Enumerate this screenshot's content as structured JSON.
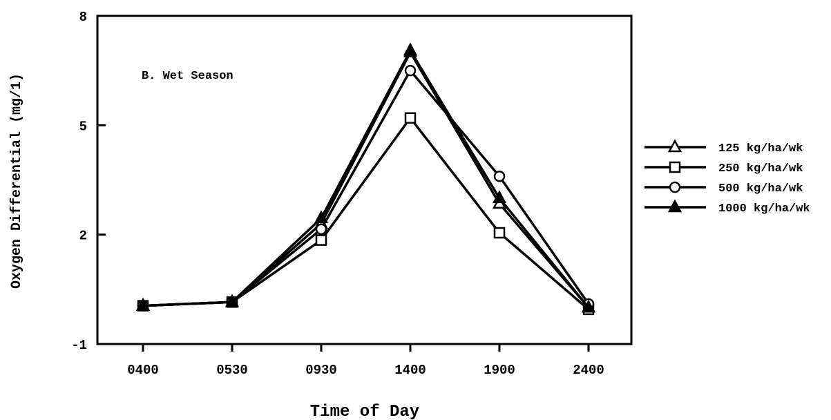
{
  "chart_data": {
    "type": "line",
    "annotation": "B. Wet Season",
    "xlabel": "Time of Day",
    "ylabel": "Oxygen Differential  (mg/1)",
    "categories": [
      "0400",
      "0530",
      "0930",
      "1400",
      "1900",
      "2400"
    ],
    "ylim": [
      -1,
      8
    ],
    "yticks": [
      "8",
      "5",
      "2",
      "-1"
    ],
    "ytick_values": [
      8,
      5,
      2,
      -1
    ],
    "grid": false,
    "legend_position": "right",
    "series": [
      {
        "name": "125 kg/ha/wk",
        "marker": "triangle-open",
        "values": [
          0.05,
          0.15,
          2.3,
          7.0,
          2.85,
          0.0
        ]
      },
      {
        "name": "250 kg/ha/wk",
        "marker": "square-open",
        "values": [
          0.05,
          0.15,
          1.85,
          5.2,
          2.05,
          -0.05
        ]
      },
      {
        "name": "500 kg/ha/wk",
        "marker": "circle-open",
        "values": [
          0.05,
          0.15,
          2.15,
          6.5,
          3.6,
          0.1
        ]
      },
      {
        "name": "1000 kg/ha/wk",
        "marker": "triangle-filled",
        "values": [
          0.05,
          0.15,
          2.45,
          7.05,
          3.0,
          0.0
        ]
      }
    ],
    "colors": {
      "line": "#000000",
      "background": "#ffffff"
    }
  }
}
